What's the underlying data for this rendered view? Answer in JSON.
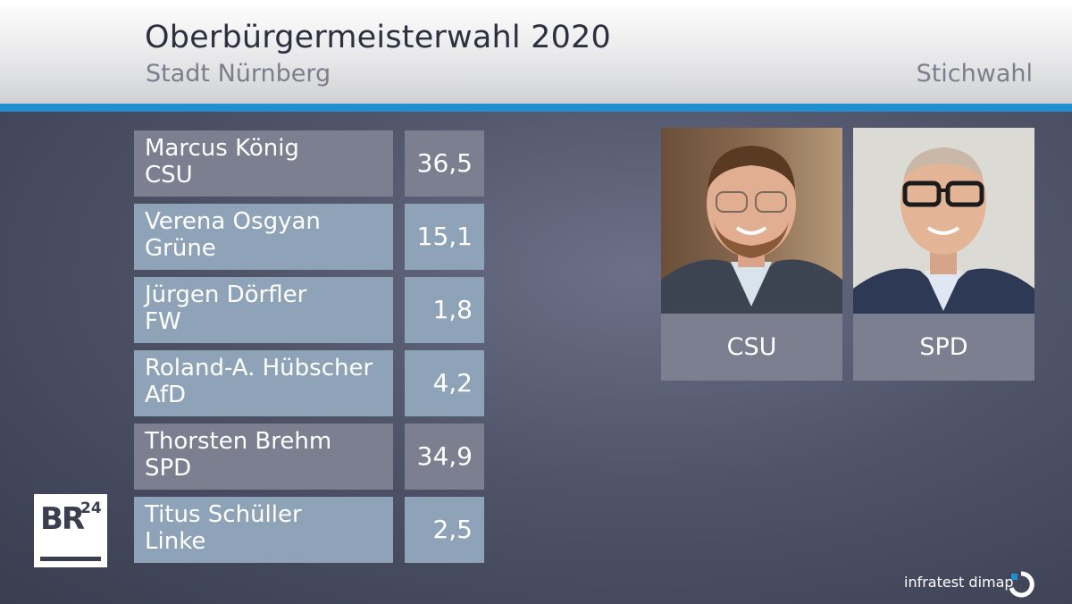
{
  "header": {
    "title": "Oberbürgermeisterwahl 2020",
    "subtitle": "Stadt Nürnberg",
    "round": "Stichwahl"
  },
  "results": [
    {
      "name": "Marcus König",
      "party": "CSU",
      "value": "36,5",
      "style": "grey"
    },
    {
      "name": "Verena Osgyan",
      "party": "Grüne",
      "value": "15,1",
      "style": "blue"
    },
    {
      "name": "Jürgen Dörfler",
      "party": "FW",
      "value": "1,8",
      "style": "blue"
    },
    {
      "name": "Roland-A. Hübscher",
      "party": "AfD",
      "value": "4,2",
      "style": "blue"
    },
    {
      "name": "Thorsten Brehm",
      "party": "SPD",
      "value": "34,9",
      "style": "grey"
    },
    {
      "name": "Titus Schüller",
      "party": "Linke",
      "value": "2,5",
      "style": "blue"
    }
  ],
  "runoff": [
    {
      "party": "CSU"
    },
    {
      "party": "SPD"
    }
  ],
  "branding": {
    "logo": "BR",
    "logo_sup": "24",
    "credit": "infratest dimap"
  },
  "colors": {
    "accent_blue": "#1f8fcf",
    "box_grey": "#7c7f90",
    "box_blue": "#8ea3b8"
  }
}
